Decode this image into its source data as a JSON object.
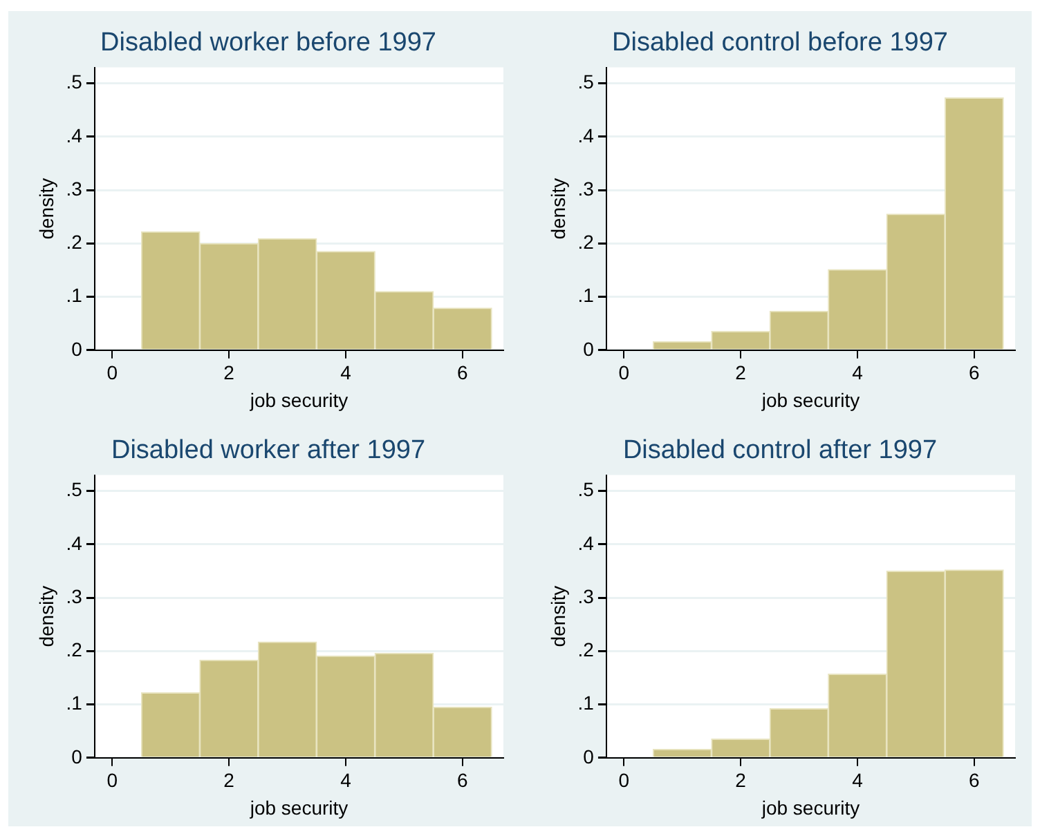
{
  "chart_data": [
    {
      "type": "histogram",
      "title": "Disabled worker before 1997",
      "xlabel": "job security",
      "ylabel": "density",
      "bins": [
        0.5,
        1.5,
        2.5,
        3.5,
        4.5,
        5.5,
        6.5
      ],
      "values": [
        0.222,
        0.2,
        0.209,
        0.185,
        0.11,
        0.079
      ],
      "color": "#cbc283",
      "xlim": [
        -0.3,
        6.7
      ],
      "xticks": [
        0,
        2,
        4,
        6
      ],
      "ylim": [
        0,
        0.53
      ],
      "yticks": [
        {
          "value": 0,
          "label": "0"
        },
        {
          "value": 0.1,
          "label": ".1"
        },
        {
          "value": 0.2,
          "label": ".2"
        },
        {
          "value": 0.3,
          "label": ".3"
        },
        {
          "value": 0.4,
          "label": ".4"
        },
        {
          "value": 0.5,
          "label": ".5"
        }
      ],
      "grid": "y"
    },
    {
      "type": "histogram",
      "title": "Disabled control before 1997",
      "xlabel": "job security",
      "ylabel": "density",
      "bins": [
        0.5,
        1.5,
        2.5,
        3.5,
        4.5,
        5.5,
        6.5
      ],
      "values": [
        0.016,
        0.035,
        0.073,
        0.151,
        0.255,
        0.473
      ],
      "color": "#cbc283",
      "xlim": [
        -0.3,
        6.7
      ],
      "xticks": [
        0,
        2,
        4,
        6
      ],
      "ylim": [
        0,
        0.53
      ],
      "yticks": [
        {
          "value": 0,
          "label": "0"
        },
        {
          "value": 0.1,
          "label": ".1"
        },
        {
          "value": 0.2,
          "label": ".2"
        },
        {
          "value": 0.3,
          "label": ".3"
        },
        {
          "value": 0.4,
          "label": ".4"
        },
        {
          "value": 0.5,
          "label": ".5"
        }
      ],
      "grid": "y"
    },
    {
      "type": "histogram",
      "title": "Disabled worker after 1997",
      "xlabel": "job security",
      "ylabel": "density",
      "bins": [
        0.5,
        1.5,
        2.5,
        3.5,
        4.5,
        5.5,
        6.5
      ],
      "values": [
        0.122,
        0.183,
        0.217,
        0.191,
        0.196,
        0.095
      ],
      "color": "#cbc283",
      "xlim": [
        -0.3,
        6.7
      ],
      "xticks": [
        0,
        2,
        4,
        6
      ],
      "ylim": [
        0,
        0.53
      ],
      "yticks": [
        {
          "value": 0,
          "label": "0"
        },
        {
          "value": 0.1,
          "label": ".1"
        },
        {
          "value": 0.2,
          "label": ".2"
        },
        {
          "value": 0.3,
          "label": ".3"
        },
        {
          "value": 0.4,
          "label": ".4"
        },
        {
          "value": 0.5,
          "label": ".5"
        }
      ],
      "grid": "y"
    },
    {
      "type": "histogram",
      "title": "Disabled control after 1997",
      "xlabel": "job security",
      "ylabel": "density",
      "bins": [
        0.5,
        1.5,
        2.5,
        3.5,
        4.5,
        5.5,
        6.5
      ],
      "values": [
        0.016,
        0.035,
        0.092,
        0.157,
        0.35,
        0.352
      ],
      "color": "#cbc283",
      "xlim": [
        -0.3,
        6.7
      ],
      "xticks": [
        0,
        2,
        4,
        6
      ],
      "ylim": [
        0,
        0.53
      ],
      "yticks": [
        {
          "value": 0,
          "label": "0"
        },
        {
          "value": 0.1,
          "label": ".1"
        },
        {
          "value": 0.2,
          "label": ".2"
        },
        {
          "value": 0.3,
          "label": ".3"
        },
        {
          "value": 0.4,
          "label": ".4"
        },
        {
          "value": 0.5,
          "label": ".5"
        }
      ],
      "grid": "y"
    }
  ]
}
